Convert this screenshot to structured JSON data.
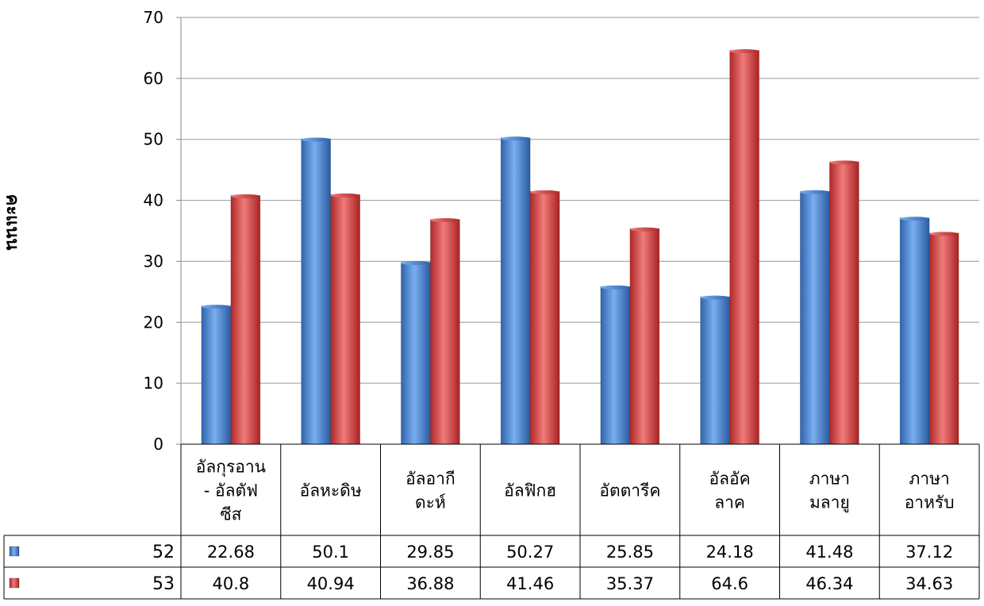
{
  "chart_data": {
    "type": "bar",
    "title": "",
    "xlabel": "",
    "ylabel": "คะแนน",
    "ylim": [
      0,
      70
    ],
    "yticks": [
      0,
      10,
      20,
      30,
      40,
      50,
      60,
      70
    ],
    "grid": true,
    "legend": "data-table-left",
    "categories": [
      [
        "อัลกุรอาน",
        "- อัลตัฟ",
        "ซีส"
      ],
      [
        "อัลหะดิษ"
      ],
      [
        "อัลอากี",
        "ดะห์"
      ],
      [
        "อัลฟิกฮ"
      ],
      [
        "อัตตารีค"
      ],
      [
        "อัลอัค",
        "ลาค"
      ],
      [
        "ภาษา",
        "มลายู"
      ],
      [
        "ภาษา",
        "อาหรับ"
      ]
    ],
    "series": [
      {
        "name": "52",
        "color": "#3a78c9",
        "values": [
          22.68,
          50.1,
          29.85,
          50.27,
          25.85,
          24.18,
          41.48,
          37.12
        ],
        "labels": [
          "22.68",
          "50.1",
          "29.85",
          "50.27",
          "25.85",
          "24.18",
          "41.48",
          "37.12"
        ]
      },
      {
        "name": "53",
        "color": "#d23a3a",
        "values": [
          40.8,
          40.94,
          36.88,
          41.46,
          35.37,
          64.6,
          46.34,
          34.63
        ],
        "labels": [
          "40.8",
          "40.94",
          "36.88",
          "41.46",
          "35.37",
          "64.6",
          "46.34",
          "34.63"
        ]
      }
    ]
  }
}
